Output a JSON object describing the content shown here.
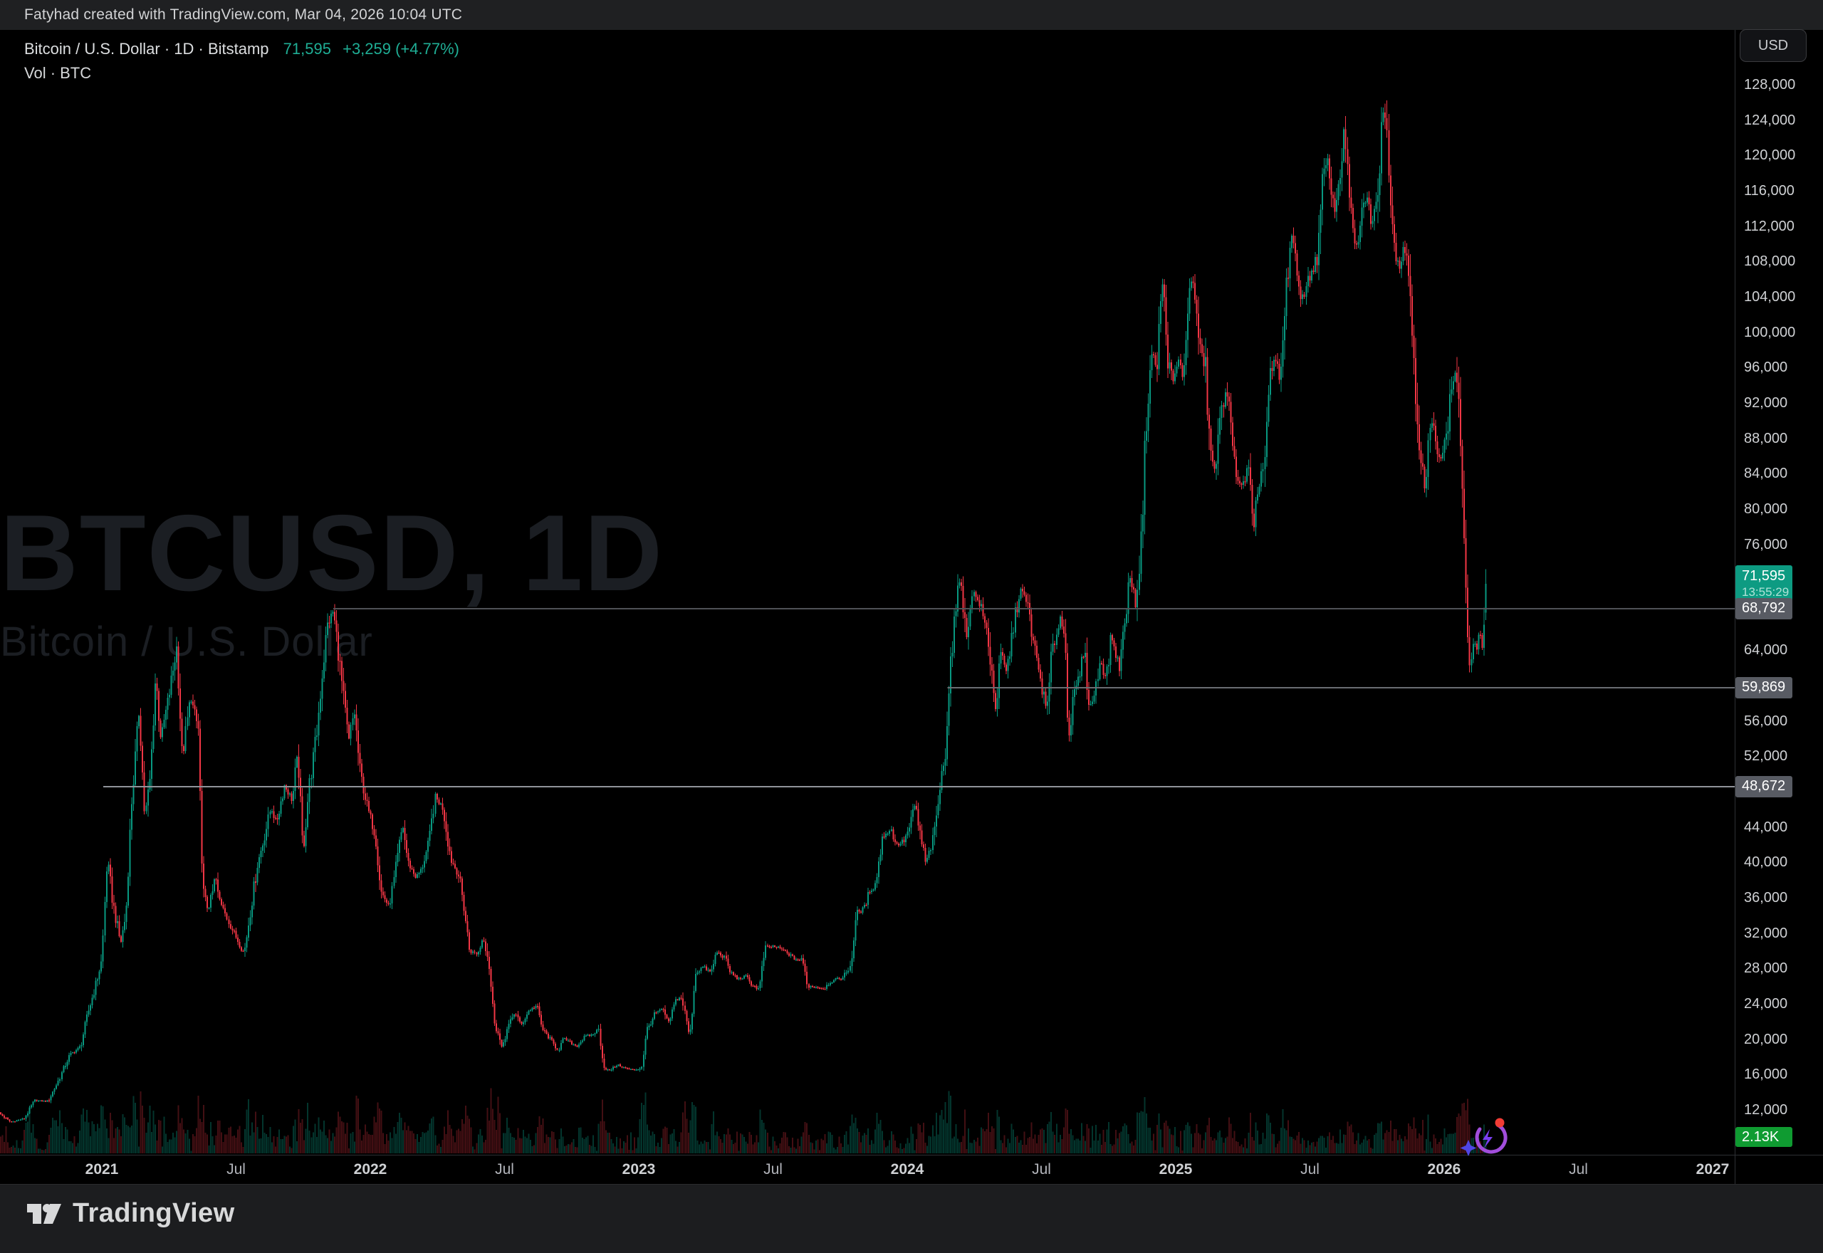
{
  "attribution": "Fatyhad created with TradingView.com, Mar 04, 2026 10:04 UTC",
  "legend": {
    "symbol_line": "Bitcoin / U.S. Dollar · 1D · Bitstamp",
    "last_price": "71,595",
    "change": "+3,259 (+4.77%)",
    "volume_line": "Vol · BTC"
  },
  "watermark": {
    "title": "BTCUSD, 1D",
    "subtitle": "Bitcoin / U.S. Dollar"
  },
  "currency_button": "USD",
  "logo_text": "TradingView",
  "colors": {
    "up": "#089981",
    "down": "#f23645",
    "vol_up": "rgba(8,153,129,0.35)",
    "vol_down": "rgba(242,54,69,0.28)",
    "last_badge_bg": "#0d9b82",
    "gray_badge_bg": "#585b63",
    "vol_badge_bg": "#0f9b31",
    "legend_green": "#1fae95"
  },
  "price_axis": {
    "visible_ticks": [
      128000,
      124000,
      120000,
      116000,
      112000,
      108000,
      104000,
      100000,
      96000,
      92000,
      88000,
      84000,
      80000,
      76000,
      64000,
      56000,
      52000,
      44000,
      40000,
      36000,
      32000,
      28000,
      24000,
      20000,
      16000,
      12000
    ]
  },
  "time_axis": {
    "ticks": [
      {
        "label": "2021",
        "t": 2021.0,
        "major": true
      },
      {
        "label": "Jul",
        "t": 2021.5,
        "major": false
      },
      {
        "label": "2022",
        "t": 2022.0,
        "major": true
      },
      {
        "label": "Jul",
        "t": 2022.5,
        "major": false
      },
      {
        "label": "2023",
        "t": 2023.0,
        "major": true
      },
      {
        "label": "Jul",
        "t": 2023.5,
        "major": false
      },
      {
        "label": "2024",
        "t": 2024.0,
        "major": true
      },
      {
        "label": "Jul",
        "t": 2024.5,
        "major": false
      },
      {
        "label": "2025",
        "t": 2025.0,
        "major": true
      },
      {
        "label": "Jul",
        "t": 2025.5,
        "major": false
      },
      {
        "label": "2026",
        "t": 2026.0,
        "major": true
      },
      {
        "label": "Jul",
        "t": 2026.5,
        "major": false
      },
      {
        "label": "2027",
        "t": 2027.0,
        "major": true
      }
    ]
  },
  "badges": {
    "last_price": {
      "label": "71,595",
      "countdown": "13:55:29",
      "price": 71595
    },
    "volume": {
      "label": "2.13K"
    }
  },
  "chart_data": {
    "type": "candlestick",
    "symbol": "BTCUSD",
    "name": "Bitcoin / U.S. Dollar",
    "timeframe": "1D",
    "exchange": "Bitstamp",
    "quote_currency": "USD",
    "last_close": 71595,
    "change_abs": 3259,
    "change_pct": 4.77,
    "countdown": "13:55:29",
    "current_volume": "2.13K",
    "y_axis_range": [
      9500,
      130000
    ],
    "x_axis_range": [
      2020.62,
      2027.15
    ],
    "grid": "off",
    "rays": [
      {
        "price": 68792,
        "label": "68,792",
        "start_t": 2021.862,
        "color": "#4f5156"
      },
      {
        "price": 59869,
        "label": "59,869",
        "start_t": 2024.15,
        "color": "#6a6d72"
      },
      {
        "price": 48672,
        "label": "48,672",
        "start_t": 2021.005,
        "color": "#90939a"
      }
    ],
    "last_candle": {
      "open": 68336,
      "close": 71595,
      "high": 73250,
      "low": 67500
    },
    "anchors": [
      [
        2020.61,
        11900
      ],
      [
        2020.66,
        10700
      ],
      [
        2020.71,
        11100
      ],
      [
        2020.75,
        13150
      ],
      [
        2020.8,
        13050
      ],
      [
        2020.84,
        15500
      ],
      [
        2020.88,
        18300
      ],
      [
        2020.92,
        19200
      ],
      [
        2020.95,
        23200
      ],
      [
        2020.98,
        26500
      ],
      [
        2021.0,
        29000
      ],
      [
        2021.02,
        40600
      ],
      [
        2021.04,
        35600
      ],
      [
        2021.07,
        30900
      ],
      [
        2021.09,
        34300
      ],
      [
        2021.11,
        46400
      ],
      [
        2021.14,
        57400
      ],
      [
        2021.16,
        45200
      ],
      [
        2021.18,
        49600
      ],
      [
        2021.2,
        61200
      ],
      [
        2021.22,
        54100
      ],
      [
        2021.25,
        58900
      ],
      [
        2021.28,
        64600
      ],
      [
        2021.3,
        51700
      ],
      [
        2021.33,
        58800
      ],
      [
        2021.36,
        55000
      ],
      [
        2021.375,
        36700
      ],
      [
        2021.4,
        34700
      ],
      [
        2021.42,
        38500
      ],
      [
        2021.44,
        35600
      ],
      [
        2021.47,
        33500
      ],
      [
        2021.5,
        31600
      ],
      [
        2021.53,
        29800
      ],
      [
        2021.55,
        33900
      ],
      [
        2021.58,
        39900
      ],
      [
        2021.6,
        42200
      ],
      [
        2021.63,
        46300
      ],
      [
        2021.65,
        44600
      ],
      [
        2021.68,
        48800
      ],
      [
        2021.71,
        47100
      ],
      [
        2021.73,
        52650
      ],
      [
        2021.75,
        41000
      ],
      [
        2021.77,
        48100
      ],
      [
        2021.8,
        54700
      ],
      [
        2021.82,
        61300
      ],
      [
        2021.84,
        66900
      ],
      [
        2021.862,
        68500
      ],
      [
        2021.88,
        64300
      ],
      [
        2021.9,
        58700
      ],
      [
        2021.92,
        53800
      ],
      [
        2021.94,
        57300
      ],
      [
        2021.96,
        50600
      ],
      [
        2021.99,
        46200
      ],
      [
        2022.02,
        43100
      ],
      [
        2022.04,
        36800
      ],
      [
        2022.07,
        35100
      ],
      [
        2022.09,
        38300
      ],
      [
        2022.12,
        44400
      ],
      [
        2022.14,
        40100
      ],
      [
        2022.17,
        38400
      ],
      [
        2022.19,
        39200
      ],
      [
        2022.22,
        42400
      ],
      [
        2022.24,
        47500
      ],
      [
        2022.27,
        46300
      ],
      [
        2022.3,
        40500
      ],
      [
        2022.33,
        38600
      ],
      [
        2022.35,
        34900
      ],
      [
        2022.37,
        30100
      ],
      [
        2022.4,
        29700
      ],
      [
        2022.42,
        31700
      ],
      [
        2022.44,
        29200
      ],
      [
        2022.46,
        22500
      ],
      [
        2022.49,
        19100
      ],
      [
        2022.51,
        21200
      ],
      [
        2022.54,
        23200
      ],
      [
        2022.56,
        21600
      ],
      [
        2022.59,
        23300
      ],
      [
        2022.62,
        23900
      ],
      [
        2022.64,
        21300
      ],
      [
        2022.67,
        20100
      ],
      [
        2022.7,
        18800
      ],
      [
        2022.72,
        20200
      ],
      [
        2022.75,
        19600
      ],
      [
        2022.77,
        19300
      ],
      [
        2022.8,
        20400
      ],
      [
        2022.83,
        20600
      ],
      [
        2022.85,
        21300
      ],
      [
        2022.87,
        16900
      ],
      [
        2022.89,
        16500
      ],
      [
        2022.92,
        17200
      ],
      [
        2022.95,
        16800
      ],
      [
        2022.98,
        16600
      ],
      [
        2023.01,
        16800
      ],
      [
        2023.03,
        21100
      ],
      [
        2023.06,
        23000
      ],
      [
        2023.09,
        23500
      ],
      [
        2023.11,
        21800
      ],
      [
        2023.14,
        24600
      ],
      [
        2023.16,
        24800
      ],
      [
        2023.19,
        20200
      ],
      [
        2023.21,
        27500
      ],
      [
        2023.24,
        28300
      ],
      [
        2023.27,
        27600
      ],
      [
        2023.29,
        30000
      ],
      [
        2023.32,
        29300
      ],
      [
        2023.34,
        27700
      ],
      [
        2023.37,
        26900
      ],
      [
        2023.4,
        27200
      ],
      [
        2023.42,
        26300
      ],
      [
        2023.45,
        25700
      ],
      [
        2023.47,
        30400
      ],
      [
        2023.5,
        30600
      ],
      [
        2023.53,
        30300
      ],
      [
        2023.55,
        29900
      ],
      [
        2023.58,
        29200
      ],
      [
        2023.61,
        29000
      ],
      [
        2023.63,
        26100
      ],
      [
        2023.66,
        26000
      ],
      [
        2023.69,
        25800
      ],
      [
        2023.71,
        26500
      ],
      [
        2023.74,
        26900
      ],
      [
        2023.76,
        27000
      ],
      [
        2023.79,
        28500
      ],
      [
        2023.81,
        34200
      ],
      [
        2023.84,
        34900
      ],
      [
        2023.86,
        36900
      ],
      [
        2023.88,
        37400
      ],
      [
        2023.91,
        43100
      ],
      [
        2023.94,
        43800
      ],
      [
        2023.96,
        42000
      ],
      [
        2023.99,
        42600
      ],
      [
        2024.01,
        44200
      ],
      [
        2024.03,
        46700
      ],
      [
        2024.05,
        42900
      ],
      [
        2024.07,
        39900
      ],
      [
        2024.1,
        43100
      ],
      [
        2024.12,
        48200
      ],
      [
        2024.14,
        52000
      ],
      [
        2024.16,
        62400
      ],
      [
        2024.18,
        68300
      ],
      [
        2024.2,
        73000
      ],
      [
        2024.22,
        64900
      ],
      [
        2024.24,
        70800
      ],
      [
        2024.27,
        69400
      ],
      [
        2024.3,
        65700
      ],
      [
        2024.33,
        57300
      ],
      [
        2024.35,
        63800
      ],
      [
        2024.37,
        61500
      ],
      [
        2024.4,
        67600
      ],
      [
        2024.42,
        71100
      ],
      [
        2024.45,
        69000
      ],
      [
        2024.47,
        64900
      ],
      [
        2024.5,
        60300
      ],
      [
        2024.52,
        57000
      ],
      [
        2024.54,
        63900
      ],
      [
        2024.57,
        67900
      ],
      [
        2024.59,
        64600
      ],
      [
        2024.6,
        54000
      ],
      [
        2024.62,
        58700
      ],
      [
        2024.64,
        61000
      ],
      [
        2024.66,
        64100
      ],
      [
        2024.68,
        57500
      ],
      [
        2024.7,
        59400
      ],
      [
        2024.72,
        63200
      ],
      [
        2024.74,
        60800
      ],
      [
        2024.76,
        65800
      ],
      [
        2024.79,
        62100
      ],
      [
        2024.81,
        67000
      ],
      [
        2024.83,
        72700
      ],
      [
        2024.85,
        69300
      ],
      [
        2024.87,
        75600
      ],
      [
        2024.89,
        90400
      ],
      [
        2024.91,
        97700
      ],
      [
        2024.93,
        95900
      ],
      [
        2024.95,
        106100
      ],
      [
        2024.97,
        97500
      ],
      [
        2024.99,
        94200
      ],
      [
        2025.01,
        96900
      ],
      [
        2025.03,
        94700
      ],
      [
        2025.05,
        106000
      ],
      [
        2025.07,
        104800
      ],
      [
        2025.09,
        97900
      ],
      [
        2025.11,
        96600
      ],
      [
        2025.13,
        86100
      ],
      [
        2025.15,
        84300
      ],
      [
        2025.17,
        91200
      ],
      [
        2025.19,
        94300
      ],
      [
        2025.21,
        86800
      ],
      [
        2025.23,
        83700
      ],
      [
        2025.25,
        82500
      ],
      [
        2025.27,
        85100
      ],
      [
        2025.29,
        76900
      ],
      [
        2025.31,
        83200
      ],
      [
        2025.33,
        85200
      ],
      [
        2025.35,
        94700
      ],
      [
        2025.37,
        97000
      ],
      [
        2025.39,
        94300
      ],
      [
        2025.41,
        104100
      ],
      [
        2025.43,
        111700
      ],
      [
        2025.45,
        106800
      ],
      [
        2025.47,
        103900
      ],
      [
        2025.49,
        105600
      ],
      [
        2025.51,
        107300
      ],
      [
        2025.53,
        108900
      ],
      [
        2025.55,
        118100
      ],
      [
        2025.57,
        119500
      ],
      [
        2025.59,
        113300
      ],
      [
        2025.61,
        117600
      ],
      [
        2025.63,
        123300
      ],
      [
        2025.65,
        113500
      ],
      [
        2025.67,
        109000
      ],
      [
        2025.69,
        112800
      ],
      [
        2025.71,
        115700
      ],
      [
        2025.73,
        112300
      ],
      [
        2025.75,
        114400
      ],
      [
        2025.77,
        125900
      ],
      [
        2025.79,
        121700
      ],
      [
        2025.81,
        111500
      ],
      [
        2025.83,
        107300
      ],
      [
        2025.85,
        110100
      ],
      [
        2025.87,
        106400
      ],
      [
        2025.89,
        95800
      ],
      [
        2025.91,
        86900
      ],
      [
        2025.93,
        81600
      ],
      [
        2025.95,
        90400
      ],
      [
        2025.97,
        87200
      ],
      [
        2025.99,
        85900
      ],
      [
        2026.01,
        88600
      ],
      [
        2026.03,
        94400
      ],
      [
        2026.045,
        96000
      ],
      [
        2026.06,
        89100
      ],
      [
        2026.07,
        80500
      ],
      [
        2026.08,
        70500
      ],
      [
        2026.09,
        64800
      ],
      [
        2026.1,
        61800
      ],
      [
        2026.11,
        66200
      ],
      [
        2026.12,
        63400
      ],
      [
        2026.13,
        66800
      ],
      [
        2026.138,
        64200
      ],
      [
        2026.146,
        63900
      ],
      [
        2026.152,
        68336
      ],
      [
        2026.155,
        71595
      ]
    ]
  }
}
